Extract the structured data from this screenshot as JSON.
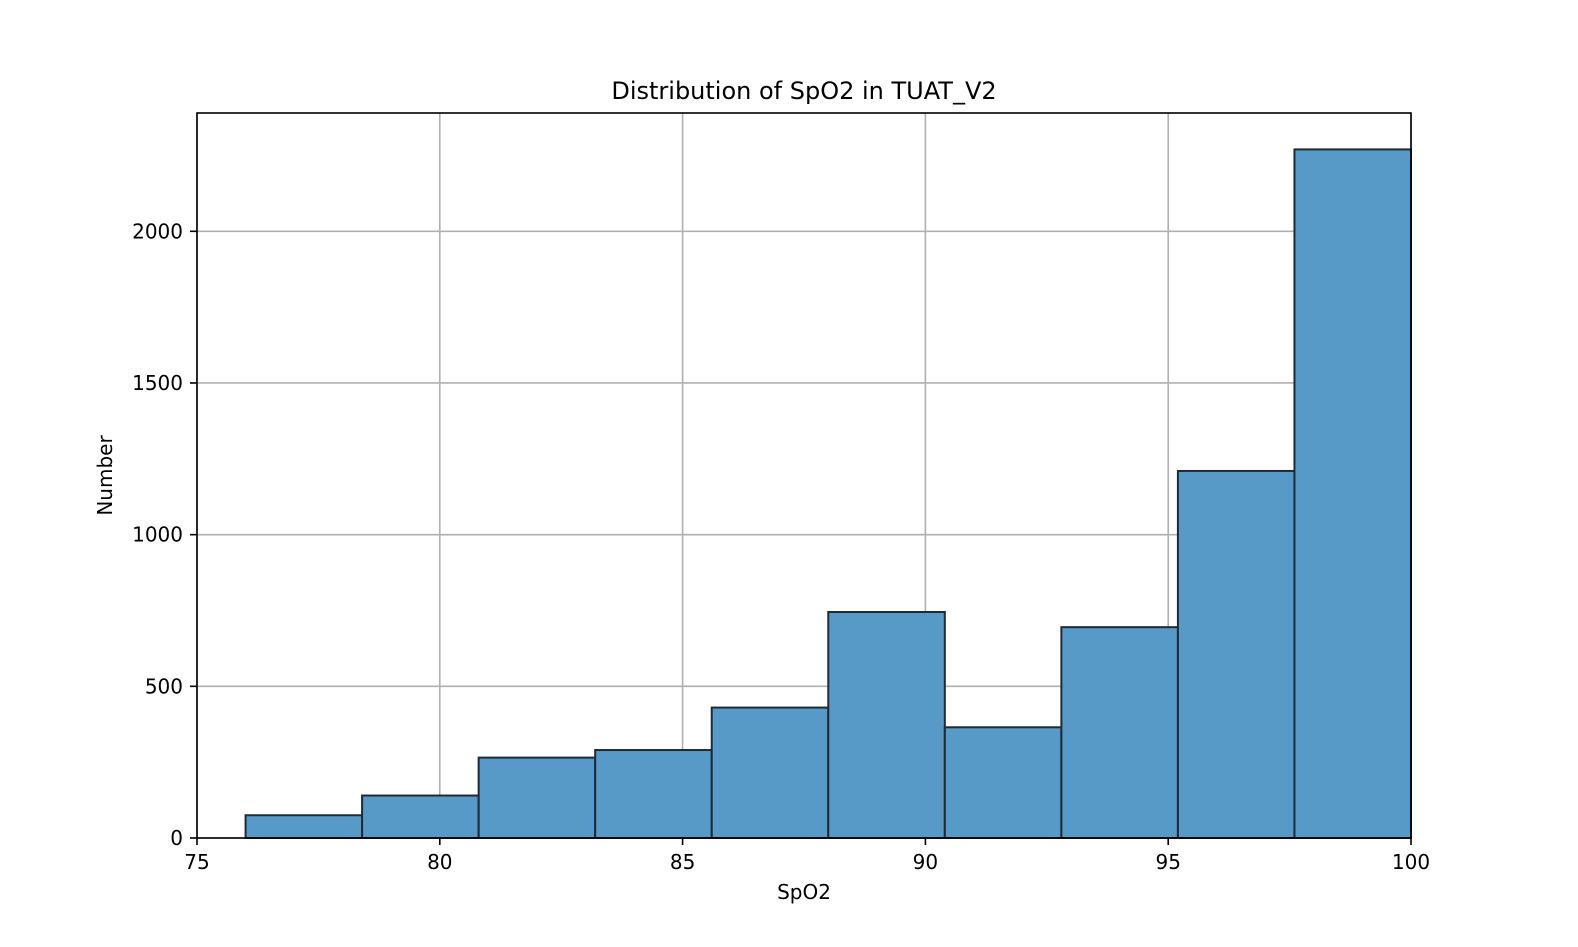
{
  "chart_data": {
    "type": "bar",
    "subtype": "histogram",
    "title": "Distribution of SpO2 in TUAT_V2",
    "xlabel": "SpO2",
    "ylabel": "Number",
    "xlim": [
      75,
      100
    ],
    "ylim": [
      0,
      2390
    ],
    "xticks": [
      75,
      80,
      85,
      90,
      95,
      100
    ],
    "yticks": [
      0,
      500,
      1000,
      1500,
      2000
    ],
    "xtick_labels": [
      "75",
      "80",
      "85",
      "90",
      "95",
      "100"
    ],
    "ytick_labels": [
      "0",
      "500",
      "1000",
      "1500",
      "2000"
    ],
    "grid": true,
    "bar_color": "#5799c7",
    "edge_color": "#1f2a36",
    "bins": [
      {
        "x0": 76.0,
        "x1": 78.4,
        "count": 75
      },
      {
        "x0": 78.4,
        "x1": 80.8,
        "count": 140
      },
      {
        "x0": 80.8,
        "x1": 83.2,
        "count": 265
      },
      {
        "x0": 83.2,
        "x1": 85.6,
        "count": 290
      },
      {
        "x0": 85.6,
        "x1": 88.0,
        "count": 430
      },
      {
        "x0": 88.0,
        "x1": 90.4,
        "count": 745
      },
      {
        "x0": 90.4,
        "x1": 92.8,
        "count": 365
      },
      {
        "x0": 92.8,
        "x1": 95.2,
        "count": 695
      },
      {
        "x0": 95.2,
        "x1": 97.6,
        "count": 1210
      },
      {
        "x0": 97.6,
        "x1": 100.0,
        "count": 2270
      }
    ]
  }
}
